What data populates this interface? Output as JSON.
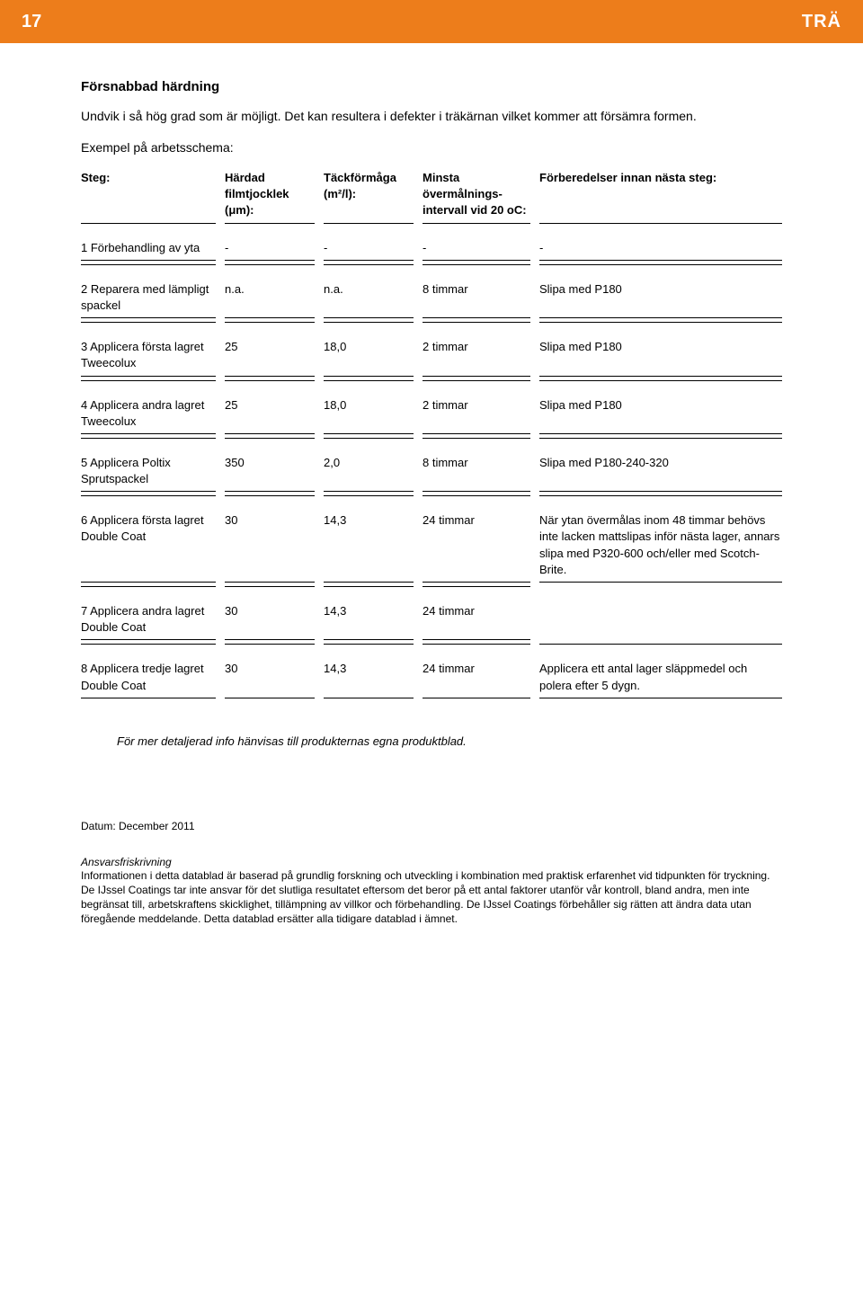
{
  "header": {
    "page_number": "17",
    "category": "TRÄ",
    "bg_color": "#ed7d1b",
    "text_color": "#ffffff"
  },
  "intro": {
    "heading": "Försnabbad härdning",
    "p1": "Undvik i så hög grad som är möjligt. Det kan resultera i defekter i träkärnan vilket kommer att försämra formen.",
    "p2": "Exempel på arbetsschema:"
  },
  "table": {
    "columns": {
      "c1": "Steg:",
      "c2": "Härdad filmtjocklek (μm):",
      "c3": "Täckförmåga (m²/l):",
      "c4": "Minsta övermålnings-intervall vid 20 oC:",
      "c5": "Förberedelser innan nästa steg:"
    },
    "rows": [
      {
        "c1": "1 Förbehandling av yta",
        "c2": "-",
        "c3": "-",
        "c4": "-",
        "c5": "-",
        "show_e": true
      },
      {
        "c1": "2 Reparera med lämpligt spackel",
        "c2": "n.a.",
        "c3": "n.a.",
        "c4": "8 timmar",
        "c5": "Slipa med P180",
        "show_e": true
      },
      {
        "c1": "3 Applicera första lagret Tweecolux",
        "c2": "25",
        "c3": "18,0",
        "c4": "2 timmar",
        "c5": "Slipa med P180",
        "show_e": true
      },
      {
        "c1": "4 Applicera andra lagret Tweecolux",
        "c2": "25",
        "c3": "18,0",
        "c4": "2 timmar",
        "c5": "Slipa med P180",
        "show_e": true
      },
      {
        "c1": "5 Applicera Poltix Sprutspackel",
        "c2": "350",
        "c3": "2,0",
        "c4": "8 timmar",
        "c5": "Slipa med P180-240-320",
        "show_e": true
      },
      {
        "c1": "6 Applicera första lagret Double Coat",
        "c2": "30",
        "c3": "14,3",
        "c4": "24 timmar",
        "c5": "När ytan övermålas inom 48 timmar behövs inte lacken mattslipas inför nästa lager, annars slipa med P320-600 och/eller med Scotch-Brite.",
        "show_e": true
      },
      {
        "c1": "7 Applicera andra lagret Double Coat",
        "c2": "30",
        "c3": "14,3",
        "c4": "24 timmar",
        "c5": "",
        "show_e": false
      },
      {
        "c1": "8 Applicera tredje lagret Double Coat",
        "c2": "30",
        "c3": "14,3",
        "c4": "24 timmar",
        "c5": "Applicera ett antal lager släppmedel och polera efter 5 dygn.",
        "show_e": true
      }
    ]
  },
  "footer_note": "För mer detaljerad info hänvisas till produkternas egna produktblad.",
  "datum": "Datum: December 2011",
  "disclaimer": {
    "heading": "Ansvarsfriskrivning",
    "body": "Informationen i detta datablad är baserad på grundlig forskning och utveckling i kombination med praktisk erfarenhet vid tidpunkten för tryckning. De IJssel Coatings tar inte ansvar för det slutliga resultatet eftersom det beror på ett antal faktorer utanför vår kontroll, bland andra, men inte begränsat till, arbetskraftens skicklighet, tillämpning av villkor och förbehandling. De IJssel Coatings förbehåller sig rätten att ändra data utan föregående meddelande. Detta datablad ersätter alla tidigare datablad i ämnet."
  }
}
